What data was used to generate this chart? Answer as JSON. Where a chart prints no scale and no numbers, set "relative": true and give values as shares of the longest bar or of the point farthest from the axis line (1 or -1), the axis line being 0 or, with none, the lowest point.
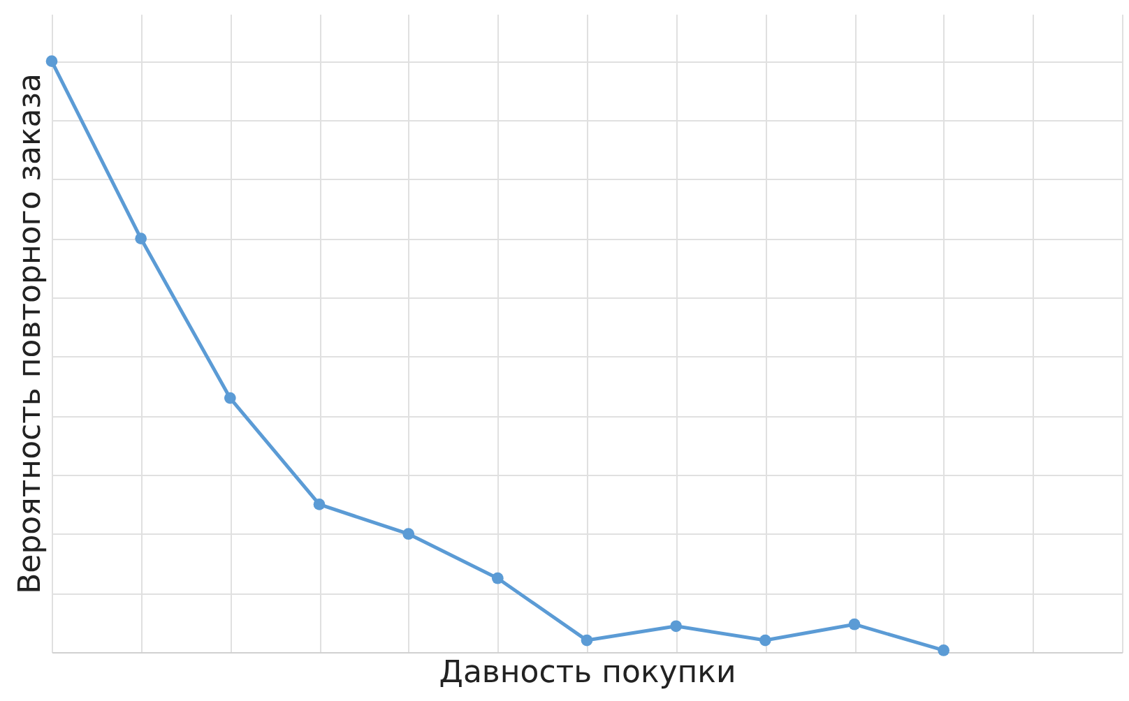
{
  "chart_data": {
    "type": "line",
    "xlabel": "Давность покупки",
    "ylabel": "Вероятность повторного заказа",
    "relative": true,
    "categories": [
      null,
      null,
      null,
      null,
      null,
      null,
      null,
      null,
      null,
      null,
      null,
      null,
      null
    ],
    "series": [
      {
        "color": "#5b9bd5",
        "values": [
          1,
          0.7,
          0.43,
          0.25,
          0.2,
          0.125,
          0.02,
          0.044,
          0.02,
          0.047,
          0.003,
          null,
          null
        ]
      }
    ],
    "marker": "circle",
    "line_style": "solid",
    "grid": true,
    "tick_labels": false
  }
}
